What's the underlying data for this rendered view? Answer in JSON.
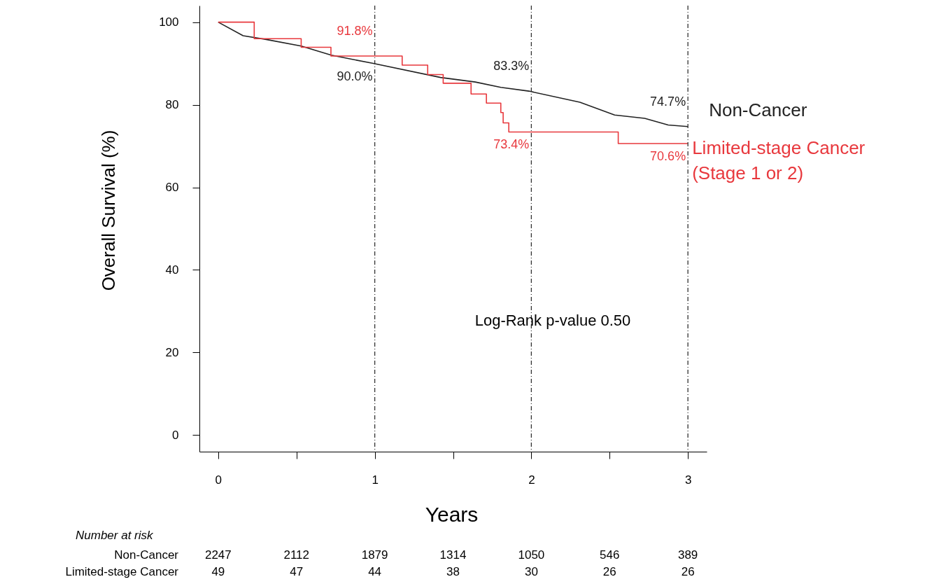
{
  "chart_data": {
    "type": "line",
    "xlabel": "Years",
    "ylabel": "Overall Survival (%)",
    "xlim": [
      -0.12,
      3.12
    ],
    "xticks": [
      0,
      {
        "value": 0.5,
        "label": null
      },
      1,
      {
        "value": 1.5,
        "label": null
      },
      2,
      {
        "value": 2.5,
        "label": null
      },
      3
    ],
    "ylim": [
      -4,
      104
    ],
    "yticks": [
      0,
      20,
      40,
      60,
      80,
      100
    ],
    "series": [
      {
        "name": "Non-Cancer",
        "color": "#222222",
        "x": [
          0,
          0.159,
          0.307,
          0.53,
          0.722,
          0.99,
          1.42,
          1.642,
          1.805,
          1.984,
          2.31,
          2.532,
          2.724,
          2.874,
          3
        ],
        "values": [
          100,
          96.7,
          95.8,
          94.2,
          92.0,
          90.0,
          86.6,
          85.5,
          84.2,
          83.3,
          80.6,
          77.5,
          76.7,
          75.1,
          74.7
        ]
      },
      {
        "name": "Limited-stage Cancer (Stage 1 or 2)",
        "type": "step",
        "color": "#e8383d",
        "x": [
          0,
          0.23,
          0.53,
          0.72,
          1.175,
          1.338,
          1.437,
          1.615,
          1.713,
          1.805,
          1.82,
          1.856,
          2.555,
          3
        ],
        "values": [
          100,
          96.0,
          93.9,
          91.8,
          89.6,
          87.3,
          85.2,
          82.6,
          80.4,
          78.1,
          75.6,
          73.4,
          70.6,
          70.6
        ]
      }
    ],
    "ref_lines": [
      {
        "axis": "x",
        "value": 1,
        "line_style": "dashed"
      },
      {
        "axis": "x",
        "value": 2,
        "line_style": "dashed"
      },
      {
        "axis": "x",
        "value": 3,
        "line_style": "dashed"
      }
    ],
    "annotations": [
      {
        "text": "91.8%",
        "x": 1,
        "y": 91.8
      },
      {
        "text": "90.0%",
        "x": 1,
        "y": 90.0
      },
      {
        "text": "83.3%",
        "x": 2,
        "y": 83.3
      },
      {
        "text": "73.4%",
        "x": 2,
        "y": 73.4
      },
      {
        "text": "74.7%",
        "x": 3,
        "y": 74.7
      },
      {
        "text": "70.6%",
        "x": 3,
        "y": 70.6
      },
      "Log-Rank p-value  0.50",
      "Number at risk",
      "Non-Cancer 2247 2112 1879 1314 1050 546 389",
      "Limited-stage Cancer 49 47 44 38 30 26 26"
    ]
  }
}
